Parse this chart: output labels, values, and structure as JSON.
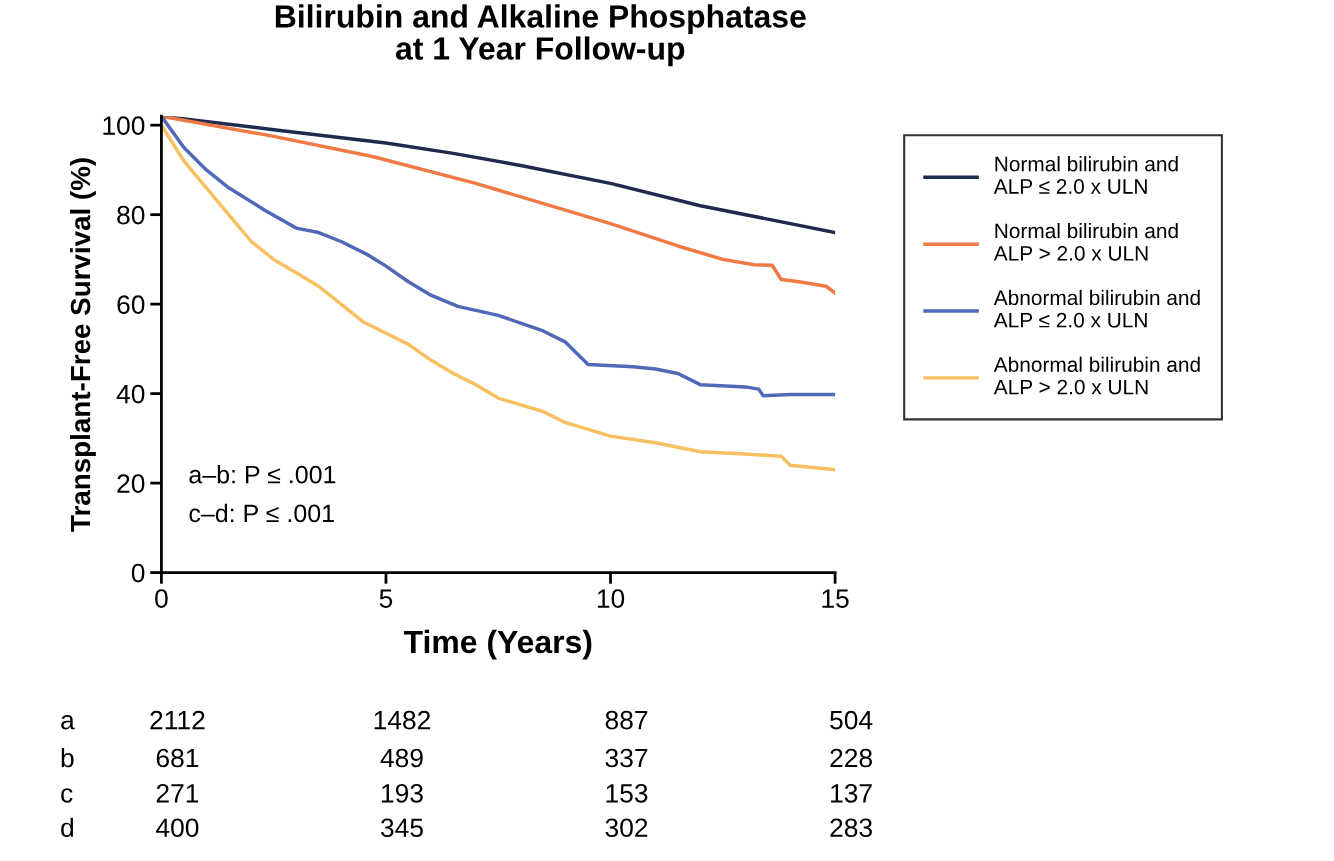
{
  "chart_data": {
    "type": "line",
    "title": "Bilirubin and Alkaline Phosphatase\nat 1 Year Follow-up",
    "xlabel": "Time (Years)",
    "ylabel": "Transplant-Free Survival (%)",
    "xlim": [
      0,
      15
    ],
    "xticks": [
      0,
      5,
      10,
      15
    ],
    "ylim": [
      0,
      102
    ],
    "yticks": [
      0,
      20,
      40,
      60,
      80,
      100
    ],
    "grid": false,
    "legend": "right",
    "series": [
      {
        "name": "Normal bilirubin and\nALP ≤ 2.0 x ULN",
        "color": "#1f2a4f",
        "x": [
          0,
          2.5,
          5,
          6.5,
          8,
          10,
          12,
          13.5,
          15
        ],
        "values": [
          102,
          99,
          96,
          93.7,
          91,
          87,
          82,
          79,
          76
        ]
      },
      {
        "name": "Normal bilirubin and\nALP > 2.0 x ULN",
        "color": "#f07a45",
        "x": [
          0,
          2.5,
          4.7,
          7,
          10,
          11.5,
          12.5,
          13.2,
          13.6,
          13.8,
          14.2,
          14.8,
          15
        ],
        "values": [
          102,
          97.5,
          93,
          87,
          78,
          73,
          70,
          68.8,
          68.7,
          65.5,
          65,
          64,
          62.5
        ]
      },
      {
        "name": "Abnormal bilirubin and\nALP ≤ 2.0 x ULN",
        "color": "#5068b8",
        "x": [
          0,
          0.5,
          1,
          1.5,
          2.3,
          3,
          3.5,
          4,
          4.6,
          5,
          5.5,
          6,
          6.6,
          7.5,
          8.5,
          9,
          9.5,
          10.5,
          11,
          11.5,
          12,
          13,
          13.3,
          13.4,
          14,
          15
        ],
        "values": [
          102,
          95,
          90,
          86,
          81,
          77,
          76,
          74,
          71,
          68.5,
          65,
          62,
          59.5,
          57.5,
          54,
          51.5,
          46.5,
          46,
          45.5,
          44.5,
          42,
          41.5,
          41,
          39.5,
          39.8,
          39.8
        ]
      },
      {
        "name": "Abnormal bilirubin and\nALP > 2.0 x ULN",
        "color": "#f7c060",
        "x": [
          0,
          0.5,
          1,
          1.5,
          2,
          2.5,
          3,
          3.5,
          4,
          4.5,
          5,
          5.5,
          6,
          6.5,
          7,
          7.5,
          8,
          8.5,
          9,
          9.5,
          10,
          11,
          12,
          13,
          13.8,
          14,
          14.5,
          15
        ],
        "values": [
          100,
          92,
          86,
          80,
          74,
          70,
          67,
          64,
          60,
          56,
          53.5,
          51,
          47.5,
          44.5,
          42,
          39,
          37.5,
          36,
          33.5,
          32,
          30.5,
          29,
          27,
          26.5,
          26,
          24,
          23.5,
          23
        ]
      }
    ],
    "annotations": [
      "a–b: P ≤ .001",
      "c–d: P ≤ .001",
      "a",
      "2112",
      "1482",
      "887",
      "504",
      "b",
      "681",
      "489",
      "337",
      "228",
      "c",
      "271",
      "193",
      "153",
      "137",
      "d",
      "400",
      "345",
      "302",
      "283"
    ]
  }
}
